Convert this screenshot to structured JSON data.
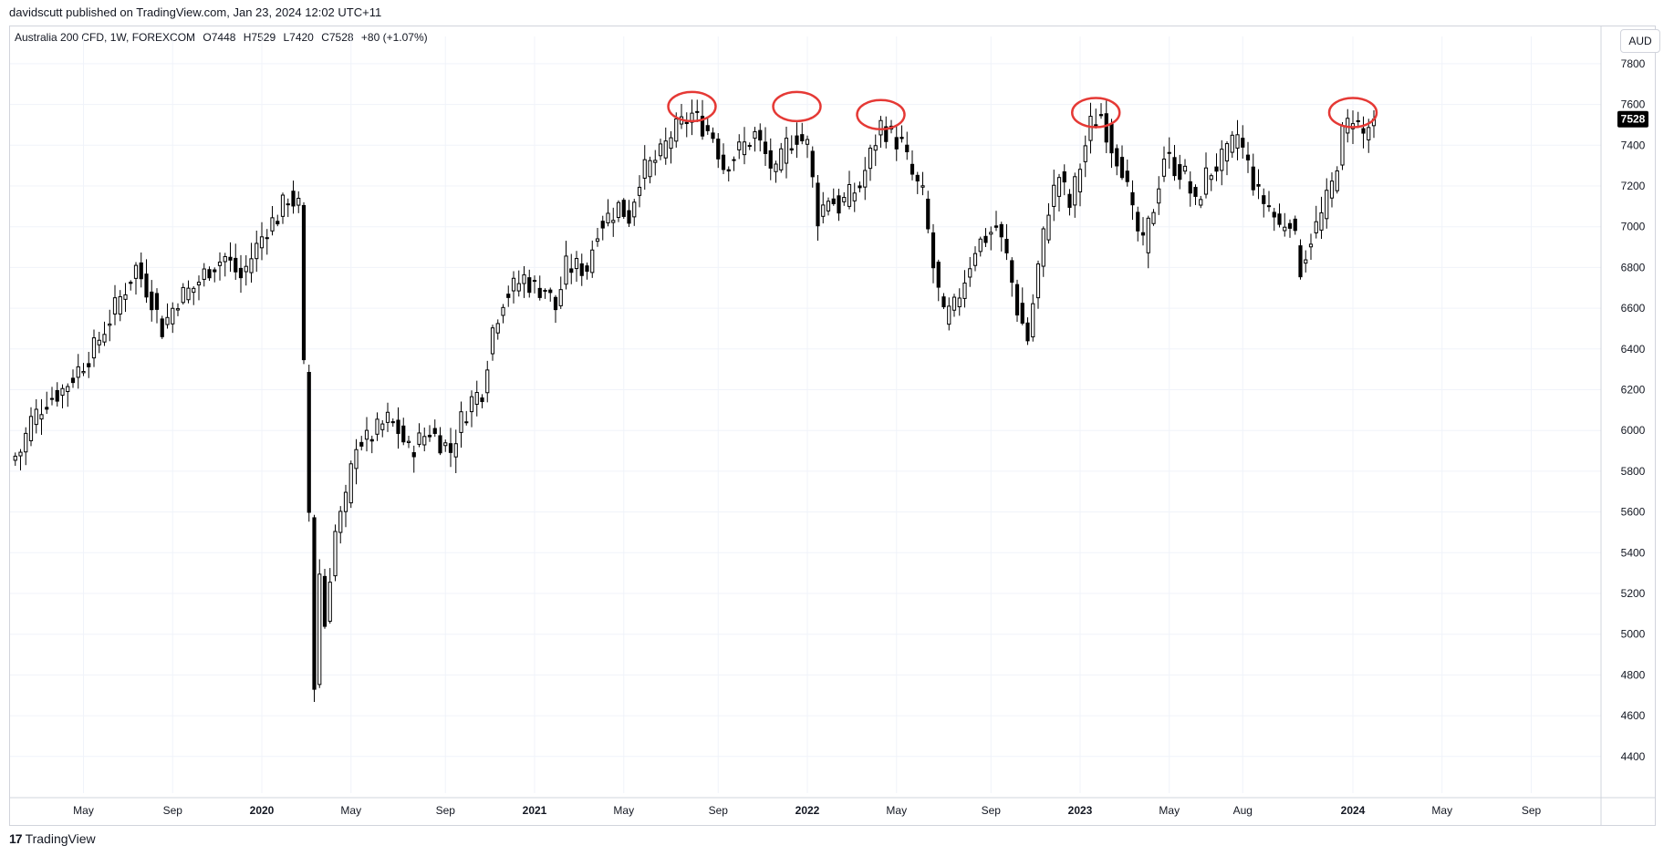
{
  "header": {
    "publisher_line": "davidscutt published on TradingView.com, Jan 23, 2024 12:02 UTC+11"
  },
  "legend": {
    "symbol": "Australia 200 CFD, 1W, FOREXCOM",
    "open": "O7448",
    "high": "H7529",
    "low": "L7420",
    "close": "C7528",
    "change": "+80 (+1.07%)"
  },
  "currency_button": {
    "label": "AUD"
  },
  "footer": {
    "logo_mark": "17",
    "logo_text": "TradingView"
  },
  "colors": {
    "up_body": "#ffffff",
    "down_body": "#000000",
    "wick": "#000000",
    "grid": "#f0f3fa",
    "annotation": "#e53935",
    "last_price_bg": "#000000",
    "last_price_text": "#ffffff"
  },
  "chart_data": {
    "type": "candlestick",
    "ylim": [
      4200,
      7900
    ],
    "y_ticks": [
      4400,
      4600,
      4800,
      5000,
      5200,
      5400,
      5600,
      5800,
      6000,
      6200,
      6400,
      6600,
      6800,
      7000,
      7200,
      7400,
      7600,
      7800
    ],
    "x_ticks": [
      {
        "label": "May",
        "week": 14,
        "bold": false
      },
      {
        "label": "Sep",
        "week": 31,
        "bold": false
      },
      {
        "label": "2020",
        "week": 48,
        "bold": true
      },
      {
        "label": "May",
        "week": 65,
        "bold": false
      },
      {
        "label": "Sep",
        "week": 83,
        "bold": false
      },
      {
        "label": "2021",
        "week": 100,
        "bold": true
      },
      {
        "label": "May",
        "week": 117,
        "bold": false
      },
      {
        "label": "Sep",
        "week": 135,
        "bold": false
      },
      {
        "label": "2022",
        "week": 152,
        "bold": true
      },
      {
        "label": "May",
        "week": 169,
        "bold": false
      },
      {
        "label": "Sep",
        "week": 187,
        "bold": false
      },
      {
        "label": "2023",
        "week": 204,
        "bold": true
      },
      {
        "label": "May",
        "week": 221,
        "bold": false
      },
      {
        "label": "Aug",
        "week": 235,
        "bold": false
      },
      {
        "label": "2024",
        "week": 256,
        "bold": true
      },
      {
        "label": "May",
        "week": 273,
        "bold": false
      },
      {
        "label": "Sep",
        "week": 290,
        "bold": false
      }
    ],
    "last_price": 7528,
    "anchors": [
      [
        0,
        5850
      ],
      [
        2,
        5900
      ],
      [
        4,
        6050
      ],
      [
        7,
        6150
      ],
      [
        10,
        6200
      ],
      [
        13,
        6300
      ],
      [
        16,
        6400
      ],
      [
        19,
        6550
      ],
      [
        22,
        6700
      ],
      [
        24,
        6800
      ],
      [
        27,
        6650
      ],
      [
        29,
        6500
      ],
      [
        32,
        6650
      ],
      [
        35,
        6700
      ],
      [
        38,
        6800
      ],
      [
        41,
        6850
      ],
      [
        44,
        6750
      ],
      [
        47,
        6900
      ],
      [
        49,
        7000
      ],
      [
        51,
        7050
      ],
      [
        53,
        7150
      ],
      [
        55,
        7100
      ],
      [
        56,
        6300
      ],
      [
        57,
        5600
      ],
      [
        58,
        4750
      ],
      [
        59,
        5300
      ],
      [
        60,
        5050
      ],
      [
        61,
        5300
      ],
      [
        62,
        5500
      ],
      [
        64,
        5650
      ],
      [
        65,
        5800
      ],
      [
        66,
        5950
      ],
      [
        68,
        5950
      ],
      [
        70,
        6000
      ],
      [
        72,
        6050
      ],
      [
        74,
        6000
      ],
      [
        76,
        5900
      ],
      [
        78,
        5950
      ],
      [
        80,
        6000
      ],
      [
        82,
        5950
      ],
      [
        84,
        5900
      ],
      [
        86,
        6050
      ],
      [
        88,
        6150
      ],
      [
        90,
        6200
      ],
      [
        92,
        6500
      ],
      [
        94,
        6650
      ],
      [
        96,
        6700
      ],
      [
        98,
        6750
      ],
      [
        100,
        6700
      ],
      [
        102,
        6700
      ],
      [
        104,
        6600
      ],
      [
        106,
        6800
      ],
      [
        108,
        6800
      ],
      [
        110,
        6800
      ],
      [
        112,
        7000
      ],
      [
        114,
        7050
      ],
      [
        116,
        7100
      ],
      [
        118,
        7050
      ],
      [
        120,
        7250
      ],
      [
        122,
        7300
      ],
      [
        124,
        7350
      ],
      [
        126,
        7450
      ],
      [
        128,
        7500
      ],
      [
        130,
        7550
      ],
      [
        132,
        7500
      ],
      [
        134,
        7450
      ],
      [
        136,
        7300
      ],
      [
        138,
        7350
      ],
      [
        140,
        7400
      ],
      [
        142,
        7450
      ],
      [
        144,
        7350
      ],
      [
        146,
        7250
      ],
      [
        148,
        7400
      ],
      [
        150,
        7450
      ],
      [
        152,
        7400
      ],
      [
        154,
        7050
      ],
      [
        156,
        7150
      ],
      [
        158,
        7100
      ],
      [
        160,
        7150
      ],
      [
        162,
        7200
      ],
      [
        164,
        7350
      ],
      [
        166,
        7500
      ],
      [
        168,
        7450
      ],
      [
        170,
        7400
      ],
      [
        172,
        7250
      ],
      [
        174,
        7150
      ],
      [
        176,
        6800
      ],
      [
        178,
        6550
      ],
      [
        180,
        6600
      ],
      [
        182,
        6750
      ],
      [
        184,
        6900
      ],
      [
        186,
        6950
      ],
      [
        188,
        7000
      ],
      [
        190,
        6850
      ],
      [
        192,
        6600
      ],
      [
        194,
        6450
      ],
      [
        196,
        6800
      ],
      [
        198,
        7100
      ],
      [
        200,
        7250
      ],
      [
        202,
        7100
      ],
      [
        204,
        7300
      ],
      [
        206,
        7500
      ],
      [
        208,
        7550
      ],
      [
        210,
        7400
      ],
      [
        212,
        7300
      ],
      [
        214,
        7050
      ],
      [
        216,
        6900
      ],
      [
        218,
        7100
      ],
      [
        220,
        7350
      ],
      [
        222,
        7300
      ],
      [
        224,
        7250
      ],
      [
        226,
        7100
      ],
      [
        228,
        7250
      ],
      [
        230,
        7300
      ],
      [
        232,
        7350
      ],
      [
        234,
        7450
      ],
      [
        236,
        7300
      ],
      [
        238,
        7150
      ],
      [
        240,
        7100
      ],
      [
        242,
        7000
      ],
      [
        244,
        7050
      ],
      [
        246,
        6800
      ],
      [
        248,
        6950
      ],
      [
        250,
        7050
      ],
      [
        252,
        7200
      ],
      [
        254,
        7450
      ],
      [
        256,
        7550
      ],
      [
        258,
        7450
      ],
      [
        260,
        7528
      ]
    ],
    "annotations": [
      {
        "type": "ellipse",
        "week": 130,
        "value": 7590
      },
      {
        "type": "ellipse",
        "week": 150,
        "value": 7590
      },
      {
        "type": "ellipse",
        "week": 166,
        "value": 7550
      },
      {
        "type": "ellipse",
        "week": 207,
        "value": 7560
      },
      {
        "type": "ellipse",
        "week": 256,
        "value": 7560
      }
    ]
  }
}
